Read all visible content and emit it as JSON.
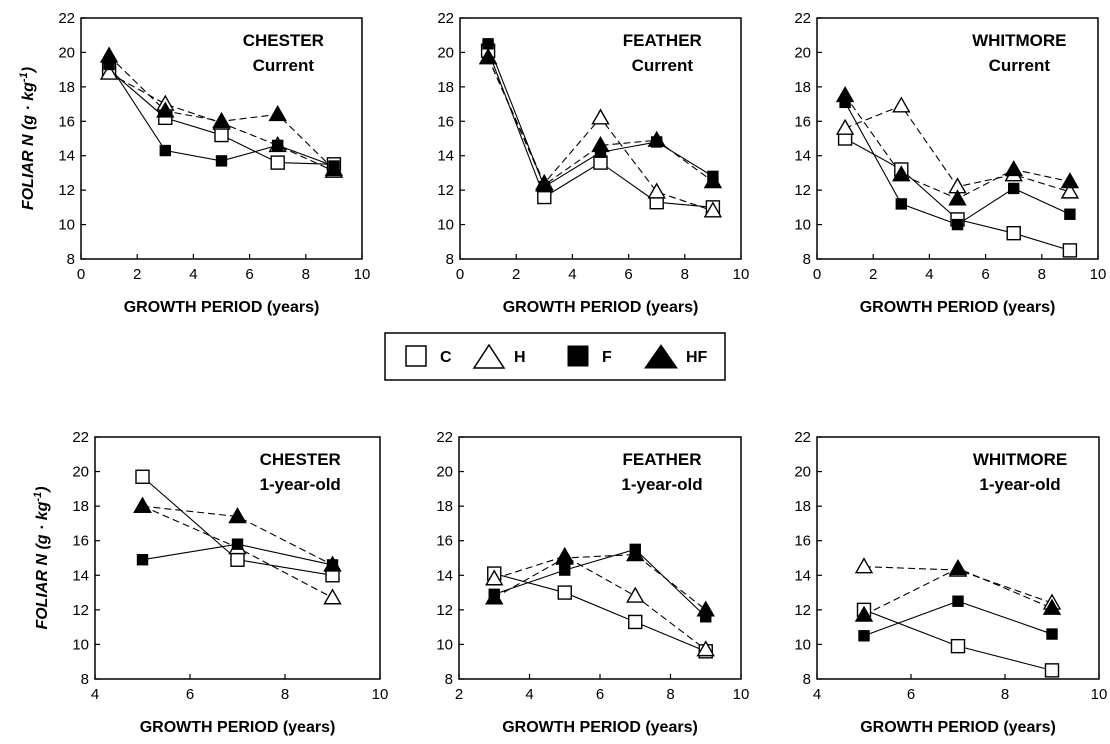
{
  "legend": {
    "entries": [
      {
        "label": "C",
        "marker": "open-square"
      },
      {
        "label": "H",
        "marker": "open-triangle"
      },
      {
        "label": "F",
        "marker": "filled-square"
      },
      {
        "label": "HF",
        "marker": "filled-triangle"
      }
    ]
  },
  "styles": {
    "C": {
      "marker": "open-square",
      "line": "solid"
    },
    "H": {
      "marker": "open-triangle",
      "line": "dashed"
    },
    "F": {
      "marker": "filled-square",
      "line": "solid"
    },
    "HF": {
      "marker": "filled-triangle",
      "line": "dashed"
    }
  },
  "chart_data": [
    {
      "type": "line",
      "title": "CHESTER",
      "subtitle": "Current",
      "xlabel": "GROWTH PERIOD (years)",
      "ylabel": "FOLIAR N (g · kg-1)",
      "xlim": [
        0,
        10
      ],
      "ylim": [
        8,
        22
      ],
      "xticks": [
        "0",
        "2",
        "4",
        "6",
        "8",
        "10"
      ],
      "yticks": [
        "8",
        "10",
        "12",
        "14",
        "16",
        "18",
        "20",
        "22"
      ],
      "series": [
        {
          "name": "C",
          "x": [
            1,
            3,
            5,
            7,
            9
          ],
          "y": [
            19.0,
            16.2,
            15.2,
            13.6,
            13.5
          ]
        },
        {
          "name": "H",
          "x": [
            1,
            3,
            5,
            7,
            9
          ],
          "y": [
            18.8,
            17.0,
            15.9,
            14.6,
            13.1
          ]
        },
        {
          "name": "F",
          "x": [
            1,
            3,
            5,
            7,
            9
          ],
          "y": [
            19.3,
            14.3,
            13.7,
            14.6,
            13.4
          ]
        },
        {
          "name": "HF",
          "x": [
            1,
            3,
            5,
            7,
            9
          ],
          "y": [
            19.8,
            16.6,
            16.0,
            16.4,
            13.2
          ]
        }
      ]
    },
    {
      "type": "line",
      "title": "FEATHER",
      "subtitle": "Current",
      "xlabel": "GROWTH PERIOD (years)",
      "ylabel": "",
      "xlim": [
        0,
        10
      ],
      "ylim": [
        8,
        22
      ],
      "xticks": [
        "0",
        "2",
        "4",
        "6",
        "8",
        "10"
      ],
      "yticks": [
        "8",
        "10",
        "12",
        "14",
        "16",
        "18",
        "20",
        "22"
      ],
      "series": [
        {
          "name": "C",
          "x": [
            1,
            3,
            5,
            7,
            9
          ],
          "y": [
            20.1,
            11.6,
            13.6,
            11.3,
            11.0
          ]
        },
        {
          "name": "H",
          "x": [
            1,
            3,
            5,
            7,
            9
          ],
          "y": [
            19.7,
            12.4,
            16.2,
            11.9,
            10.8
          ]
        },
        {
          "name": "F",
          "x": [
            1,
            3,
            5,
            7,
            9
          ],
          "y": [
            20.5,
            12.2,
            14.2,
            14.8,
            12.8
          ]
        },
        {
          "name": "HF",
          "x": [
            1,
            3,
            5,
            7,
            9
          ],
          "y": [
            19.7,
            12.3,
            14.6,
            14.9,
            12.5
          ]
        }
      ]
    },
    {
      "type": "line",
      "title": "WHITMORE",
      "subtitle": "Current",
      "xlabel": "GROWTH PERIOD (years)",
      "ylabel": "",
      "xlim": [
        0,
        10
      ],
      "ylim": [
        8,
        22
      ],
      "xticks": [
        "0",
        "2",
        "4",
        "6",
        "8",
        "10"
      ],
      "yticks": [
        "8",
        "10",
        "12",
        "14",
        "16",
        "18",
        "20",
        "22"
      ],
      "series": [
        {
          "name": "C",
          "x": [
            1,
            3,
            5,
            7,
            9
          ],
          "y": [
            15.0,
            13.2,
            10.3,
            9.5,
            8.5
          ]
        },
        {
          "name": "H",
          "x": [
            1,
            3,
            5,
            7,
            9
          ],
          "y": [
            15.6,
            16.9,
            12.2,
            12.9,
            11.9
          ]
        },
        {
          "name": "F",
          "x": [
            1,
            3,
            5,
            7,
            9
          ],
          "y": [
            17.1,
            11.2,
            10.0,
            12.1,
            10.6
          ]
        },
        {
          "name": "HF",
          "x": [
            1,
            3,
            5,
            7,
            9
          ],
          "y": [
            17.5,
            12.9,
            11.5,
            13.2,
            12.5
          ]
        }
      ]
    },
    {
      "type": "line",
      "title": "CHESTER",
      "subtitle": "1-year-old",
      "xlabel": "GROWTH PERIOD (years)",
      "ylabel": "FOLIAR N (g · kg-1)",
      "xlim": [
        4,
        10
      ],
      "ylim": [
        8,
        22
      ],
      "xticks": [
        "4",
        "6",
        "8",
        "10"
      ],
      "yticks": [
        "8",
        "10",
        "12",
        "14",
        "16",
        "18",
        "20",
        "22"
      ],
      "series": [
        {
          "name": "C",
          "x": [
            5,
            7,
            9
          ],
          "y": [
            19.7,
            14.9,
            14.0
          ]
        },
        {
          "name": "H",
          "x": [
            5,
            7,
            9
          ],
          "y": [
            18.0,
            15.6,
            12.7
          ]
        },
        {
          "name": "F",
          "x": [
            5,
            7,
            9
          ],
          "y": [
            14.9,
            15.8,
            14.6
          ]
        },
        {
          "name": "HF",
          "x": [
            5,
            7,
            9
          ],
          "y": [
            18.0,
            17.4,
            14.6
          ]
        }
      ]
    },
    {
      "type": "line",
      "title": "FEATHER",
      "subtitle": "1-year-old",
      "xlabel": "GROWTH PERIOD (years)",
      "ylabel": "",
      "xlim": [
        2,
        10
      ],
      "ylim": [
        8,
        22
      ],
      "xticks": [
        "2",
        "4",
        "6",
        "8",
        "10"
      ],
      "yticks": [
        "8",
        "10",
        "12",
        "14",
        "16",
        "18",
        "20",
        "22"
      ],
      "series": [
        {
          "name": "C",
          "x": [
            3,
            5,
            7,
            9
          ],
          "y": [
            14.1,
            13.0,
            11.3,
            9.6
          ]
        },
        {
          "name": "H",
          "x": [
            3,
            5,
            7,
            9
          ],
          "y": [
            13.8,
            15.1,
            12.8,
            9.7
          ]
        },
        {
          "name": "F",
          "x": [
            3,
            5,
            7,
            9
          ],
          "y": [
            12.9,
            14.3,
            15.5,
            11.6
          ]
        },
        {
          "name": "HF",
          "x": [
            3,
            5,
            7,
            9
          ],
          "y": [
            12.7,
            15.0,
            15.2,
            12.0
          ]
        }
      ]
    },
    {
      "type": "line",
      "title": "WHITMORE",
      "subtitle": "1-year-old",
      "xlabel": "GROWTH PERIOD (years)",
      "ylabel": "",
      "xlim": [
        4,
        10
      ],
      "ylim": [
        8,
        22
      ],
      "xticks": [
        "4",
        "6",
        "8",
        "10"
      ],
      "yticks": [
        "8",
        "10",
        "12",
        "14",
        "16",
        "18",
        "20",
        "22"
      ],
      "series": [
        {
          "name": "C",
          "x": [
            5,
            7,
            9
          ],
          "y": [
            12.0,
            9.9,
            8.5
          ]
        },
        {
          "name": "H",
          "x": [
            5,
            7,
            9
          ],
          "y": [
            14.5,
            14.3,
            12.4
          ]
        },
        {
          "name": "F",
          "x": [
            5,
            7,
            9
          ],
          "y": [
            10.5,
            12.5,
            10.6
          ]
        },
        {
          "name": "HF",
          "x": [
            5,
            7,
            9
          ],
          "y": [
            11.7,
            14.4,
            12.1
          ]
        }
      ]
    }
  ]
}
